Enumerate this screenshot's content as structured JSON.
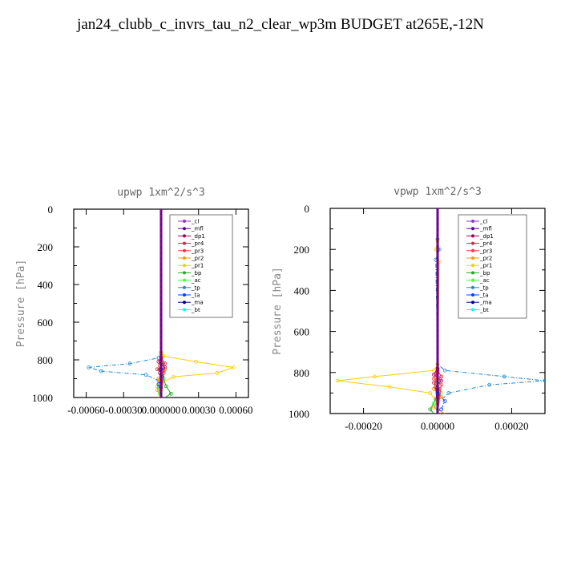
{
  "title": "jan24_clubb_c_invrs_tau_n2_clear_wp3m  BUDGET at265E,-12N",
  "legend_entries": [
    "_cl",
    "_mfl",
    "_dp1",
    "_pr4",
    "_pr3",
    "_pr2",
    "_pr1",
    "_bp",
    "_ac",
    "_tp",
    "_ta",
    "_ma",
    "_bt"
  ],
  "colors": {
    "_cl": "#9933cc",
    "_mfl": "#660099",
    "_dp1": "#aa0055",
    "_pr4": "#dd2244",
    "_pr3": "#ff3333",
    "_pr2": "#ff9900",
    "_pr1": "#ffcc00",
    "_bp": "#22aa22",
    "_ac": "#44ff44",
    "_tp": "#2288cc",
    "_ta": "#0044ff",
    "_ma": "#00008b",
    "_bt": "#00ffff"
  },
  "chart_data": [
    {
      "type": "line",
      "title": "upwp   1xm^2/s^3",
      "ylabel": "Pressure [hPa]",
      "xlim": [
        -0.0007,
        0.0007
      ],
      "ylim": [
        1000,
        0
      ],
      "xticks": [
        -0.0006,
        -0.0003,
        0.0,
        0.0003,
        0.0006
      ],
      "xtick_labels": [
        "-0.00060",
        "-0.00030",
        "0.000000",
        "0.00030",
        "0.00060"
      ],
      "yticks": [
        0,
        200,
        400,
        600,
        800,
        1000
      ],
      "ytick_labels": [
        "0",
        "200",
        "400",
        "600",
        "800",
        "1000"
      ],
      "series": [
        {
          "name": "_tp",
          "x": [
            0,
            0,
            -2e-05,
            -0.00025,
            -0.00058,
            -0.00048,
            -0.00012,
            -2e-05,
            0,
            0
          ],
          "y": [
            0,
            760,
            790,
            820,
            840,
            860,
            880,
            910,
            950,
            1000
          ]
        },
        {
          "name": "_pr1",
          "x": [
            0,
            0,
            2e-05,
            0.00028,
            0.00058,
            0.00045,
            0.0001,
            1e-05,
            0,
            -2e-05
          ],
          "y": [
            0,
            760,
            780,
            810,
            840,
            870,
            890,
            920,
            960,
            1000
          ]
        },
        {
          "name": "_pr2",
          "x": [
            0,
            0,
            1e-05,
            3e-05,
            -2e-05,
            -3e-05,
            0
          ],
          "y": [
            0,
            780,
            820,
            850,
            900,
            960,
            1000
          ]
        },
        {
          "name": "_bp",
          "x": [
            0,
            0,
            -1e-05,
            2e-05,
            4e-05,
            8e-05,
            3e-05
          ],
          "y": [
            0,
            820,
            850,
            900,
            940,
            980,
            1000
          ]
        },
        {
          "name": "_ac",
          "x": [
            0,
            0,
            2e-05,
            -3e-05,
            -1e-05,
            0
          ],
          "y": [
            0,
            850,
            900,
            940,
            980,
            1000
          ]
        },
        {
          "name": "_dp1",
          "x": [
            0,
            0,
            -2e-05,
            3e-05,
            -1e-05,
            0
          ],
          "y": [
            0,
            790,
            810,
            840,
            870,
            1000
          ]
        },
        {
          "name": "_pr4",
          "x": [
            0,
            0,
            3e-05,
            -3e-05,
            2e-05,
            0
          ],
          "y": [
            0,
            790,
            820,
            850,
            870,
            1000
          ]
        },
        {
          "name": "_pr3",
          "x": [
            0,
            0,
            -1e-05,
            2e-05,
            0
          ],
          "y": [
            0,
            800,
            830,
            860,
            1000
          ]
        },
        {
          "name": "_ta",
          "x": [
            0,
            0,
            1e-05,
            -2e-05,
            0
          ],
          "y": [
            0,
            850,
            890,
            930,
            1000
          ]
        },
        {
          "name": "_cl",
          "x": [
            0,
            0
          ],
          "y": [
            0,
            1000
          ]
        },
        {
          "name": "_mfl",
          "x": [
            0,
            0
          ],
          "y": [
            0,
            1000
          ]
        },
        {
          "name": "_ma",
          "x": [
            0,
            0
          ],
          "y": [
            0,
            1000
          ]
        },
        {
          "name": "_bt",
          "x": [
            0,
            0
          ],
          "y": [
            0,
            1000
          ]
        }
      ]
    },
    {
      "type": "line",
      "title": "vpwp   1xm^2/s^3",
      "ylabel": "Pressure [hPa]",
      "xlim": [
        -0.00029,
        0.00029
      ],
      "ylim": [
        1000,
        0
      ],
      "xticks": [
        -0.0002,
        0.0,
        0.0002
      ],
      "xtick_labels": [
        "-0.00020",
        "0.00000",
        "0.00020"
      ],
      "yticks": [
        0,
        200,
        400,
        600,
        800,
        1000
      ],
      "ytick_labels": [
        "0",
        "200",
        "400",
        "600",
        "800",
        "1000"
      ],
      "series": [
        {
          "name": "_tp",
          "x": [
            0,
            0,
            5e-06,
            -5e-06,
            0,
            2e-05,
            0.00018,
            0.00029,
            0.00014,
            3e-05,
            0,
            0
          ],
          "y": [
            0,
            150,
            200,
            250,
            760,
            790,
            820,
            840,
            860,
            900,
            950,
            1000
          ]
        },
        {
          "name": "_pr1",
          "x": [
            0,
            0,
            -5e-06,
            5e-06,
            0,
            -1e-05,
            -0.00017,
            -0.00027,
            -0.00013,
            -2e-05,
            0,
            0
          ],
          "y": [
            0,
            160,
            200,
            260,
            760,
            790,
            820,
            840,
            870,
            900,
            950,
            1000
          ]
        },
        {
          "name": "_pr2",
          "x": [
            0,
            0,
            -1e-05,
            1e-05,
            -1e-05,
            2e-05
          ],
          "y": [
            0,
            800,
            880,
            920,
            970,
            1000
          ]
        },
        {
          "name": "_bp",
          "x": [
            0,
            0,
            -5e-06,
            -2e-05,
            -1e-05
          ],
          "y": [
            0,
            880,
            930,
            980,
            1000
          ]
        },
        {
          "name": "_ac",
          "x": [
            0,
            0,
            1e-05,
            -1e-05,
            0
          ],
          "y": [
            0,
            850,
            900,
            950,
            1000
          ]
        },
        {
          "name": "_dp1",
          "x": [
            0,
            0,
            -1e-05,
            1e-05,
            -5e-06,
            0
          ],
          "y": [
            0,
            780,
            810,
            840,
            870,
            1000
          ]
        },
        {
          "name": "_pr4",
          "x": [
            0,
            0,
            1e-05,
            -1e-05,
            5e-06,
            0
          ],
          "y": [
            0,
            790,
            820,
            850,
            880,
            1000
          ]
        },
        {
          "name": "_pr3",
          "x": [
            0,
            0,
            -1e-05,
            1e-05,
            0
          ],
          "y": [
            0,
            800,
            830,
            860,
            1000
          ]
        },
        {
          "name": "_ta",
          "x": [
            0,
            0,
            2e-05,
            1e-05,
            0
          ],
          "y": [
            0,
            900,
            940,
            980,
            1000
          ]
        },
        {
          "name": "_cl",
          "x": [
            0,
            0
          ],
          "y": [
            0,
            1000
          ]
        },
        {
          "name": "_mfl",
          "x": [
            0,
            0
          ],
          "y": [
            0,
            1000
          ]
        },
        {
          "name": "_ma",
          "x": [
            0,
            0
          ],
          "y": [
            0,
            1000
          ]
        },
        {
          "name": "_bt",
          "x": [
            0,
            0
          ],
          "y": [
            0,
            1000
          ]
        }
      ]
    }
  ]
}
